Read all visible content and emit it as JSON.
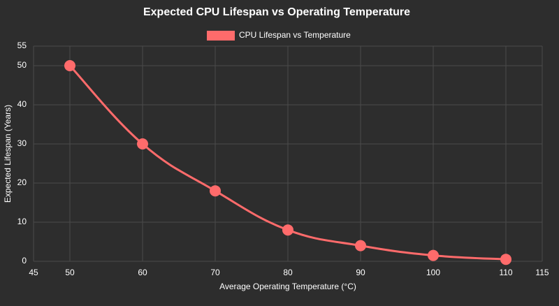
{
  "chart_data": {
    "type": "line",
    "title": "Expected CPU Lifespan vs Operating Temperature",
    "x_label": "Average Operating Temperature (°C)",
    "y_label": "Expected Lifespan (Years)",
    "x": [
      50,
      60,
      70,
      80,
      90,
      100,
      110
    ],
    "series": [
      {
        "name": "CPU Lifespan vs Temperature",
        "color": "#ff6b6b",
        "values": [
          50,
          30,
          18,
          8,
          4,
          1.5,
          0.5
        ]
      }
    ],
    "xlim": [
      45,
      115
    ],
    "xticks": [
      45,
      50,
      60,
      70,
      80,
      90,
      100,
      110,
      115
    ],
    "ylim": [
      0,
      55
    ],
    "yticks": [
      0,
      10,
      20,
      30,
      40,
      50,
      55
    ],
    "grid": true,
    "legend": "top"
  }
}
